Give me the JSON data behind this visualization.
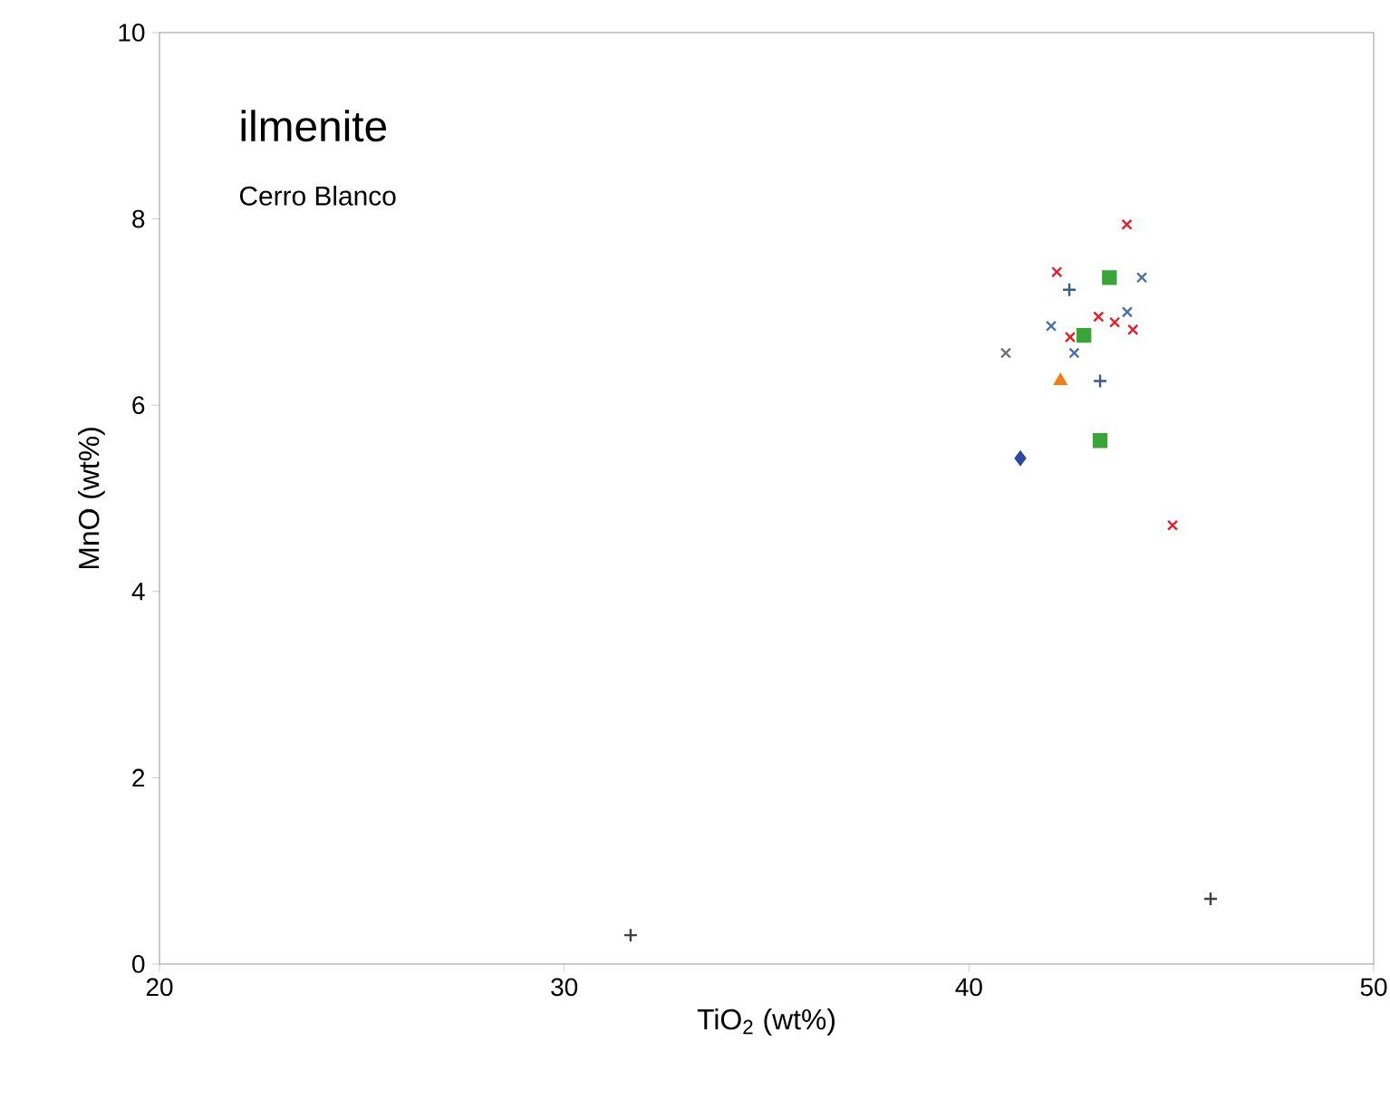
{
  "chart_data": {
    "type": "scatter",
    "xlabel": "TiO$_{2}$ (wt%)",
    "ylabel": "MnO (wt%)",
    "annotations": [
      "ilmenite",
      "Cerro Blanco"
    ],
    "xlim": [
      20,
      50
    ],
    "xticks": [
      20,
      30,
      40,
      50
    ],
    "ylim": [
      0,
      10
    ],
    "yticks": [
      0,
      2,
      4,
      6,
      8,
      10
    ],
    "grid": false,
    "series": [
      {
        "color": "#e0202c",
        "marker": "cross",
        "x": [
          43.9,
          42.17,
          42.5,
          43.2,
          43.6,
          44.05,
          45.03
        ],
        "values": [
          7.94,
          7.43,
          6.73,
          6.95,
          6.89,
          6.81,
          4.71
        ]
      },
      {
        "color": "#3aa33a",
        "marker": "square",
        "x": [
          43.47,
          43.24,
          42.84
        ],
        "values": [
          7.37,
          5.62,
          6.75
        ]
      },
      {
        "color": "#4a6fa5",
        "marker": "cross",
        "x": [
          44.27,
          42.03,
          43.91,
          42.6
        ],
        "values": [
          7.37,
          6.85,
          7.0,
          6.56
        ]
      },
      {
        "color": "#707070",
        "marker": "cross",
        "x": [
          40.91
        ],
        "values": [
          6.56
        ]
      },
      {
        "color": "#f07f1a",
        "marker": "triangle",
        "x": [
          42.26
        ],
        "values": [
          6.26
        ]
      },
      {
        "color": "#3a5a8a",
        "marker": "plus",
        "x": [
          43.24,
          42.48
        ],
        "values": [
          6.26,
          7.24
        ]
      },
      {
        "color": "#2a4aa0",
        "marker": "diamond",
        "x": [
          41.27
        ],
        "values": [
          5.43
        ]
      },
      {
        "color": "#404040",
        "marker": "plus",
        "x": [
          31.64,
          45.97
        ],
        "values": [
          0.31,
          0.7
        ]
      }
    ]
  }
}
